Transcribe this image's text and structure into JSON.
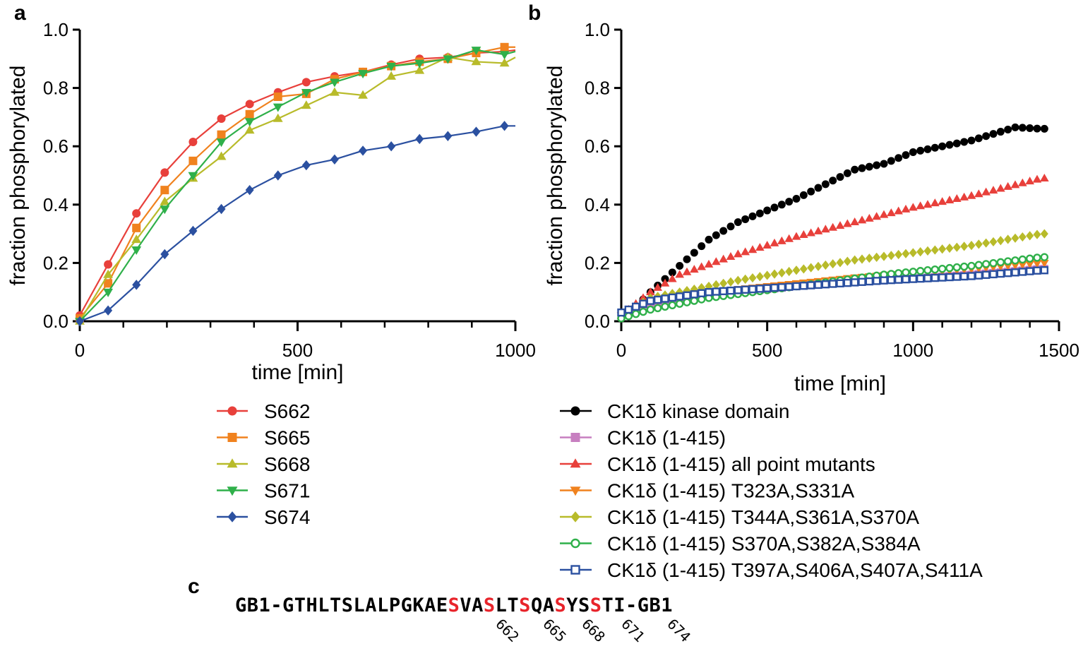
{
  "panels": {
    "a": "a",
    "b": "b",
    "c": "c"
  },
  "chart_data": [
    {
      "panel": "a",
      "type": "line",
      "xlabel": "time [min]",
      "ylabel": "fraction  phosphorylated",
      "xlim": [
        0,
        1000
      ],
      "ylim": [
        0,
        1.0
      ],
      "xticks": [
        "0",
        "500",
        "1000"
      ],
      "yticks": [
        "0.0",
        "0.2",
        "0.4",
        "0.6",
        "0.8",
        "1.0"
      ],
      "x": [
        0,
        65,
        130,
        195,
        260,
        325,
        390,
        455,
        520,
        585,
        650,
        715,
        780,
        845,
        910,
        975,
        1000
      ],
      "series": [
        {
          "name": "S662",
          "color": "#e8403b",
          "marker": "circle",
          "values": [
            0.02,
            0.195,
            0.37,
            0.51,
            0.615,
            0.695,
            0.745,
            0.785,
            0.82,
            0.84,
            0.855,
            0.88,
            0.9,
            0.905,
            0.92,
            0.925,
            0.93
          ]
        },
        {
          "name": "S665",
          "color": "#f0821e",
          "marker": "square",
          "values": [
            0.01,
            0.13,
            0.32,
            0.45,
            0.55,
            0.64,
            0.71,
            0.77,
            0.78,
            0.83,
            0.855,
            0.875,
            0.89,
            0.9,
            0.92,
            0.94,
            0.94
          ]
        },
        {
          "name": "S668",
          "color": "#b8bb2a",
          "marker": "triangle-up",
          "values": [
            0.0,
            0.16,
            0.28,
            0.41,
            0.49,
            0.565,
            0.655,
            0.695,
            0.74,
            0.785,
            0.775,
            0.84,
            0.86,
            0.905,
            0.89,
            0.885,
            0.905
          ]
        },
        {
          "name": "S671",
          "color": "#2fb04a",
          "marker": "triangle-down",
          "values": [
            0.0,
            0.1,
            0.245,
            0.385,
            0.5,
            0.615,
            0.685,
            0.735,
            0.785,
            0.82,
            0.85,
            0.875,
            0.885,
            0.9,
            0.93,
            0.915,
            0.925
          ]
        },
        {
          "name": "S674",
          "color": "#2b50a0",
          "marker": "diamond",
          "values": [
            0.0,
            0.037,
            0.125,
            0.23,
            0.31,
            0.385,
            0.45,
            0.5,
            0.535,
            0.555,
            0.585,
            0.6,
            0.625,
            0.635,
            0.65,
            0.67,
            0.67
          ]
        }
      ]
    },
    {
      "panel": "b",
      "type": "scatter",
      "xlabel": "time [min]",
      "ylabel": "fraction  phosphorylated",
      "xlim": [
        0,
        1500
      ],
      "ylim": [
        0,
        1.0
      ],
      "xticks": [
        "0",
        "500",
        "1000",
        "1500"
      ],
      "yticks": [
        "0.0",
        "0.2",
        "0.4",
        "0.6",
        "0.8",
        "1.0"
      ],
      "x_start": 0,
      "x_step": 25,
      "x_end": 1450,
      "series": [
        {
          "name": "CK1δ kinase domain",
          "color": "#000000",
          "marker": "circle",
          "anchors_x": [
            0,
            50,
            100,
            200,
            300,
            400,
            500,
            600,
            700,
            800,
            900,
            1000,
            1100,
            1200,
            1300,
            1350,
            1440
          ],
          "anchors_y": [
            0.03,
            0.05,
            0.1,
            0.19,
            0.28,
            0.34,
            0.38,
            0.42,
            0.47,
            0.52,
            0.54,
            0.58,
            0.6,
            0.62,
            0.65,
            0.665,
            0.66
          ]
        },
        {
          "name": "CK1δ (1-415)",
          "color": "#c77fc0",
          "marker": "square",
          "anchors_x": [
            0,
            100,
            300,
            600,
            900,
            1200,
            1440
          ],
          "anchors_y": [
            0.02,
            0.06,
            0.09,
            0.12,
            0.14,
            0.16,
            0.18
          ]
        },
        {
          "name": "CK1δ (1-415) all point mutants",
          "color": "#e8403b",
          "marker": "triangle-up",
          "anchors_x": [
            0,
            100,
            200,
            400,
            600,
            800,
            1000,
            1200,
            1440
          ],
          "anchors_y": [
            0.02,
            0.1,
            0.16,
            0.23,
            0.29,
            0.34,
            0.39,
            0.43,
            0.49
          ]
        },
        {
          "name": "CK1δ (1-415) T323A,S331A",
          "color": "#f0821e",
          "marker": "triangle-down",
          "anchors_x": [
            0,
            100,
            400,
            800,
            1200,
            1440
          ],
          "anchors_y": [
            0.02,
            0.07,
            0.11,
            0.15,
            0.18,
            0.2
          ]
        },
        {
          "name": "CK1δ (1-415) T344A,S361A,S370A",
          "color": "#b8bb2a",
          "marker": "diamond",
          "anchors_x": [
            0,
            100,
            400,
            800,
            1200,
            1440
          ],
          "anchors_y": [
            0.02,
            0.08,
            0.14,
            0.21,
            0.26,
            0.3
          ]
        },
        {
          "name": "CK1δ (1-415) S370A,S382A,S384A",
          "color": "#2fb04a",
          "marker": "circle-open",
          "anchors_x": [
            0,
            100,
            300,
            600,
            900,
            1200,
            1440
          ],
          "anchors_y": [
            0.01,
            0.04,
            0.08,
            0.12,
            0.16,
            0.19,
            0.22
          ]
        },
        {
          "name": "CK1δ (1-415) T397A,S406A,S407A,S411A",
          "color": "#2b50a0",
          "marker": "square-open",
          "anchors_x": [
            0,
            100,
            300,
            600,
            900,
            1200,
            1440
          ],
          "anchors_y": [
            0.03,
            0.07,
            0.1,
            0.12,
            0.14,
            0.155,
            0.175
          ]
        }
      ]
    }
  ],
  "sequence": {
    "segments": [
      {
        "text": "GB1-GTHLTSLALPGKAE",
        "highlight": false
      },
      {
        "text": "S",
        "highlight": true
      },
      {
        "text": "VA",
        "highlight": false
      },
      {
        "text": "S",
        "highlight": true
      },
      {
        "text": "LT",
        "highlight": false
      },
      {
        "text": "S",
        "highlight": true
      },
      {
        "text": "QA",
        "highlight": false
      },
      {
        "text": "S",
        "highlight": true
      },
      {
        "text": "YS",
        "highlight": false
      },
      {
        "text": "S",
        "highlight": true
      },
      {
        "text": "TI-GB1",
        "highlight": false
      }
    ],
    "positions": [
      "662",
      "665",
      "668",
      "671",
      "674"
    ],
    "highlight_color": "#e8242b"
  }
}
